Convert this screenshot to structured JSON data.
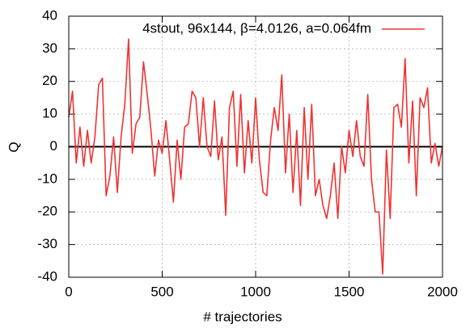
{
  "chart_data": {
    "type": "line",
    "xlabel": "# trajectories",
    "ylabel": "Q",
    "x": [
      0,
      20,
      40,
      60,
      80,
      100,
      120,
      140,
      160,
      180,
      200,
      220,
      240,
      260,
      280,
      300,
      320,
      340,
      360,
      380,
      400,
      420,
      440,
      460,
      480,
      500,
      520,
      540,
      560,
      580,
      600,
      620,
      640,
      660,
      680,
      700,
      720,
      740,
      760,
      780,
      800,
      820,
      840,
      860,
      880,
      900,
      920,
      940,
      960,
      980,
      1000,
      1020,
      1040,
      1060,
      1080,
      1100,
      1120,
      1140,
      1160,
      1180,
      1200,
      1220,
      1240,
      1260,
      1280,
      1300,
      1320,
      1340,
      1360,
      1380,
      1400,
      1420,
      1440,
      1460,
      1480,
      1500,
      1520,
      1540,
      1560,
      1580,
      1600,
      1620,
      1640,
      1660,
      1680,
      1700,
      1720,
      1740,
      1760,
      1780,
      1800,
      1820,
      1840,
      1860,
      1880,
      1900,
      1920,
      1940,
      1960,
      1980,
      2000
    ],
    "series": [
      {
        "name": "4stout, 96x144, β=4.0126, a=0.064fm",
        "color": "#f03232",
        "values": [
          9,
          17,
          -5,
          6,
          -6,
          5,
          -5,
          3,
          19,
          21,
          -15,
          -9,
          3,
          -14,
          3,
          13,
          33,
          -2,
          7,
          9,
          26,
          16,
          5,
          -9,
          2,
          -2,
          8,
          -4,
          -17,
          2,
          -10,
          6,
          7,
          17,
          15,
          0,
          15,
          0,
          -3,
          14,
          -4,
          3,
          -21,
          12,
          17,
          -6,
          16,
          -8,
          8,
          -5,
          15,
          -4,
          -14,
          -15,
          2,
          12,
          5,
          22,
          -8,
          10,
          -14,
          5,
          -18,
          12,
          -10,
          13,
          -15,
          -10,
          -18,
          -22,
          -15,
          -5,
          -22,
          0,
          -8,
          5,
          -3,
          8,
          -3,
          -6,
          16,
          -10,
          -20,
          -20,
          -39,
          -1,
          -22,
          12,
          13,
          6,
          27,
          -5,
          14,
          -15,
          15,
          12,
          18,
          -5,
          1,
          -6,
          0
        ]
      }
    ],
    "xlim": [
      0,
      2000
    ],
    "xticks": [
      0,
      500,
      1000,
      1500,
      2000
    ],
    "ylim": [
      -40,
      40
    ],
    "yticks": [
      -40,
      -30,
      -20,
      -10,
      0,
      10,
      20,
      30,
      40
    ],
    "grid": true,
    "legend": "upper right",
    "zero_line": true
  }
}
